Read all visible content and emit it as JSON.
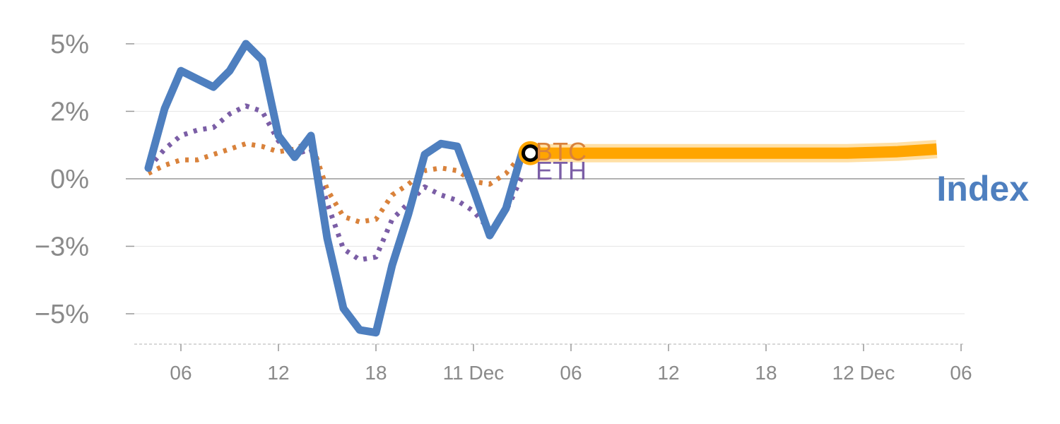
{
  "chart_data": {
    "type": "line",
    "ylim": [
      -6.2,
      5.3
    ],
    "yticks": [
      {
        "value": 5,
        "label": "5%"
      },
      {
        "value": 2.5,
        "label": "2%"
      },
      {
        "value": 0,
        "label": "0%"
      },
      {
        "value": -2.5,
        "label": "−3%"
      },
      {
        "value": -5,
        "label": "−5%"
      }
    ],
    "xrange": [
      0,
      49.5
    ],
    "xticks": [
      {
        "value": 2,
        "label": "06"
      },
      {
        "value": 8,
        "label": "12"
      },
      {
        "value": 14,
        "label": "18"
      },
      {
        "value": 20,
        "label": "11 Dec"
      },
      {
        "value": 26,
        "label": "06"
      },
      {
        "value": 32,
        "label": "12"
      },
      {
        "value": 38,
        "label": "18"
      },
      {
        "value": 44,
        "label": "12 Dec"
      },
      {
        "value": 50,
        "label": "06"
      }
    ],
    "series": [
      {
        "name": "Index",
        "color": "#4e7fbf",
        "style": "solid",
        "x": [
          0,
          1,
          2,
          3,
          4,
          5,
          6,
          7,
          8,
          9,
          10,
          11,
          12,
          13,
          14,
          15,
          16,
          17,
          18,
          19,
          20,
          21,
          22,
          23
        ],
        "y": [
          0.4,
          2.6,
          4.0,
          3.7,
          3.4,
          4.0,
          5.0,
          4.4,
          1.6,
          0.8,
          1.6,
          -2.2,
          -4.8,
          -5.6,
          -5.7,
          -3.2,
          -1.3,
          0.9,
          1.3,
          1.2,
          -0.4,
          -2.1,
          -1.1,
          1.0
        ]
      },
      {
        "name": "BTC",
        "color": "#d9823b",
        "style": "dotted",
        "x": [
          0,
          1,
          2,
          3,
          4,
          5,
          6,
          7,
          8,
          9,
          10,
          11,
          12,
          13,
          14,
          15,
          16,
          17,
          18,
          19,
          20,
          21,
          22,
          23
        ],
        "y": [
          0.2,
          0.5,
          0.7,
          0.7,
          0.9,
          1.1,
          1.3,
          1.2,
          1.0,
          1.1,
          1.4,
          -0.4,
          -1.4,
          -1.6,
          -1.5,
          -0.6,
          -0.2,
          0.3,
          0.4,
          0.3,
          -0.1,
          -0.2,
          0.2,
          0.9
        ]
      },
      {
        "name": "ETH",
        "color": "#7b5ea6",
        "style": "dotted",
        "x": [
          0,
          1,
          2,
          3,
          4,
          5,
          6,
          7,
          8,
          9,
          10,
          11,
          12,
          13,
          14,
          15,
          16,
          17,
          18,
          19,
          20,
          21,
          22,
          23
        ],
        "y": [
          0.4,
          1.1,
          1.6,
          1.8,
          1.9,
          2.4,
          2.7,
          2.5,
          1.4,
          0.9,
          1.1,
          -0.9,
          -2.6,
          -3.0,
          -2.9,
          -1.5,
          -0.9,
          -0.3,
          -0.6,
          -0.8,
          -1.2,
          -1.9,
          -1.2,
          0.1
        ]
      }
    ],
    "projection": {
      "color": "#ffa500",
      "x": [
        23.5,
        30,
        37,
        43,
        46,
        48.5
      ],
      "y": [
        0.95,
        0.95,
        0.95,
        0.95,
        1.0,
        1.1
      ]
    },
    "marker": {
      "x": 23.5,
      "y": 0.95
    },
    "labels": [
      {
        "text": "BTC",
        "color": "#d9823b"
      },
      {
        "text": "ETH",
        "color": "#7b5ea6"
      },
      {
        "text": "Index",
        "color": "#4e7fbf"
      }
    ]
  }
}
